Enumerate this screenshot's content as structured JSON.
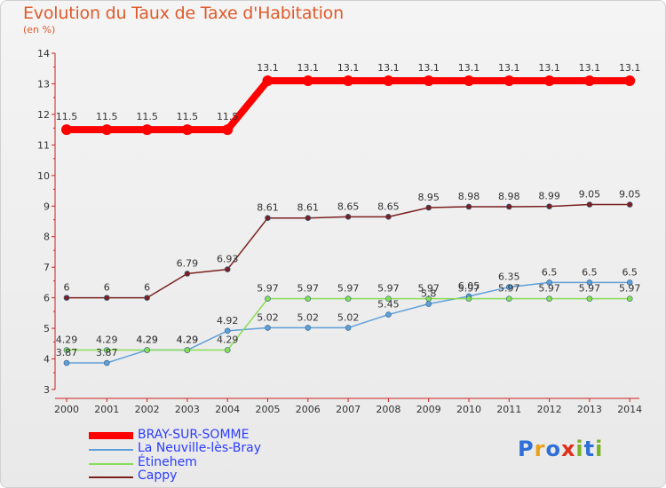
{
  "title": "Evolution du Taux de Taxe d'Habitation",
  "subtitle": "(en %)",
  "logo": {
    "text": "Proxiti",
    "letters": [
      "P",
      "r",
      "o",
      "x",
      "i",
      "t",
      "i"
    ],
    "colors": [
      "#2e6fd8",
      "#e8a21a",
      "#2e6fd8",
      "#e02f1a",
      "#7ab326",
      "#2e6fd8",
      "#7ab326"
    ]
  },
  "chart_data": {
    "type": "line",
    "x": [
      "2000",
      "2001",
      "2002",
      "2003",
      "2004",
      "2005",
      "2006",
      "2007",
      "2008",
      "2009",
      "2010",
      "2011",
      "2012",
      "2013",
      "2014"
    ],
    "ylim": [
      3,
      14
    ],
    "yticks": [
      "3",
      "4",
      "5",
      "6",
      "7",
      "8",
      "9",
      "10",
      "11",
      "12",
      "13",
      "14"
    ],
    "grid": false,
    "legend_position": "bottom-left",
    "series": [
      {
        "name": "BRAY-SUR-SOMME",
        "color": "#ff0000",
        "width": 8,
        "marker": 6,
        "values": [
          11.5,
          11.5,
          11.5,
          11.5,
          11.5,
          13.1,
          13.1,
          13.1,
          13.1,
          13.1,
          13.1,
          13.1,
          13.1,
          13.1,
          13.1
        ],
        "labels": [
          "11.5",
          "11.5",
          "11.5",
          "11.5",
          "11.5",
          "13.1",
          "13.1",
          "13.1",
          "13.1",
          "13.1",
          "13.1",
          "13.1",
          "13.1",
          "13.1",
          "13.1"
        ]
      },
      {
        "name": "Cappy",
        "color": "#7a2020",
        "width": 1.5,
        "marker": 3,
        "values": [
          6,
          6,
          6,
          6.79,
          6.93,
          8.61,
          8.61,
          8.65,
          8.65,
          8.95,
          8.98,
          8.98,
          8.99,
          9.05,
          9.05
        ],
        "labels": [
          "6",
          "6",
          "6",
          "6.79",
          "6.93",
          "8.61",
          "8.61",
          "8.65",
          "8.65",
          "8.95",
          "8.98",
          "8.98",
          "8.99",
          "9.05",
          "9.05"
        ]
      },
      {
        "name": "La Neuville-lès-Bray",
        "color": "#5f9fd8",
        "width": 1.5,
        "marker": 3,
        "values": [
          3.87,
          3.87,
          4.29,
          4.29,
          4.92,
          5.02,
          5.02,
          5.02,
          5.45,
          5.8,
          6.05,
          6.35,
          6.5,
          6.5,
          6.5
        ],
        "labels": [
          "3.87",
          "3.87",
          "4.29",
          "4.29",
          "4.92",
          "5.02",
          "5.02",
          "5.02",
          "5.45",
          "5.8",
          "6.05",
          "6.35",
          "6.5",
          "6.5",
          "6.5"
        ]
      },
      {
        "name": "Étinehem",
        "color": "#88dd55",
        "width": 1.5,
        "marker": 3,
        "values": [
          4.29,
          4.29,
          4.29,
          4.29,
          4.29,
          5.97,
          5.97,
          5.97,
          5.97,
          5.97,
          5.97,
          5.97,
          5.97,
          5.97,
          5.97
        ],
        "labels": [
          "4.29",
          "4.29",
          "4.29",
          "4.29",
          "4.29",
          "5.97",
          "5.97",
          "5.97",
          "5.97",
          "5.97",
          "5.97",
          "5.97",
          "5.97",
          "5.97",
          "5.97"
        ]
      }
    ],
    "legend": [
      {
        "name": "BRAY-SUR-SOMME",
        "color": "#ff0000",
        "thickness": 8
      },
      {
        "name": "La Neuville-lès-Bray",
        "color": "#5f9fd8",
        "thickness": 2
      },
      {
        "name": "Étinehem",
        "color": "#88dd55",
        "thickness": 2
      },
      {
        "name": "Cappy",
        "color": "#7a2020",
        "thickness": 2
      }
    ]
  }
}
